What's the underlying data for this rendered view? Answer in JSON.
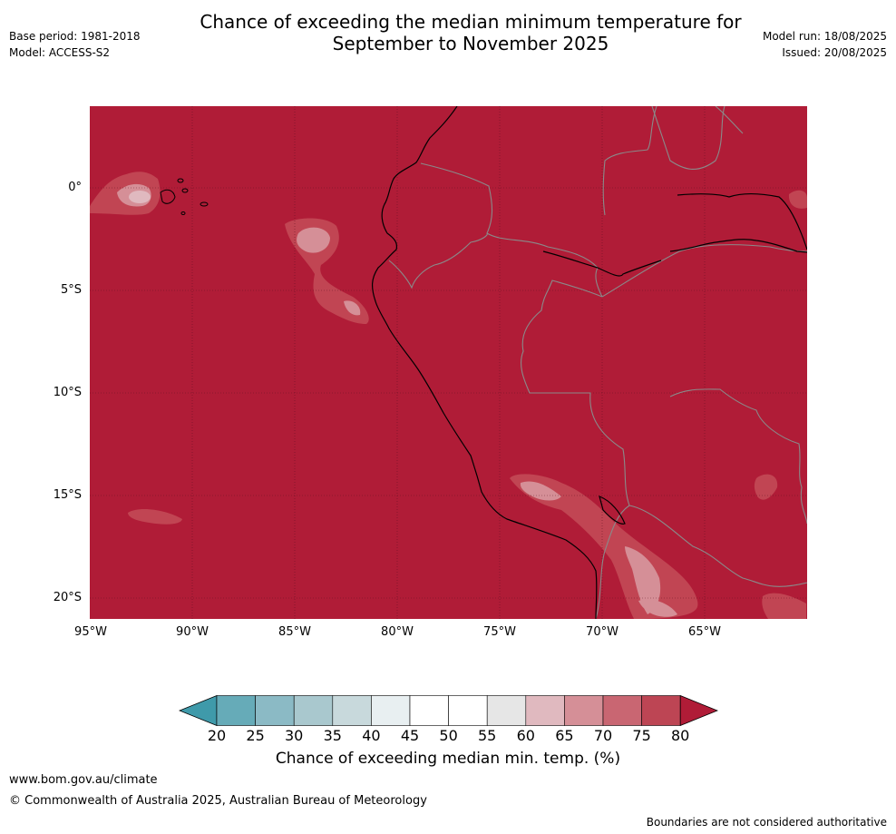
{
  "header": {
    "title_line1": "Chance of exceeding the median minimum temperature for",
    "title_line2": "September to November 2025",
    "base_period": "Base period: 1981-2018",
    "model": "Model: ACCESS-S2",
    "model_run": "Model run: 18/08/2025",
    "issued": "Issued: 20/08/2025"
  },
  "map": {
    "fill_color": "#b01c37",
    "lat_labels": [
      "0°",
      "5°S",
      "10°S",
      "15°S",
      "20°S"
    ],
    "lon_labels": [
      "95°W",
      "90°W",
      "85°W",
      "80°W",
      "75°W",
      "70°W",
      "65°W"
    ]
  },
  "colorbar": {
    "ticks": [
      "20",
      "25",
      "30",
      "35",
      "40",
      "45",
      "50",
      "55",
      "60",
      "65",
      "70",
      "75",
      "80"
    ],
    "colors": [
      "#66abb8",
      "#8bbac5",
      "#a9c8ce",
      "#c8d9dc",
      "#e8eff1",
      "#ffffff",
      "#ffffff",
      "#e6e6e6",
      "#e0b9bf",
      "#d58f97",
      "#c96672",
      "#bd4554"
    ],
    "low_extend_color": "#3f9aaa",
    "high_extend_color": "#b01c37",
    "label": "Chance of exceeding median min. temp. (%)"
  },
  "footer": {
    "url": "www.bom.gov.au/climate",
    "copyright": "© Commonwealth of Australia 2025, Australian Bureau of Meteorology",
    "note": "Boundaries are not considered authoritative"
  }
}
